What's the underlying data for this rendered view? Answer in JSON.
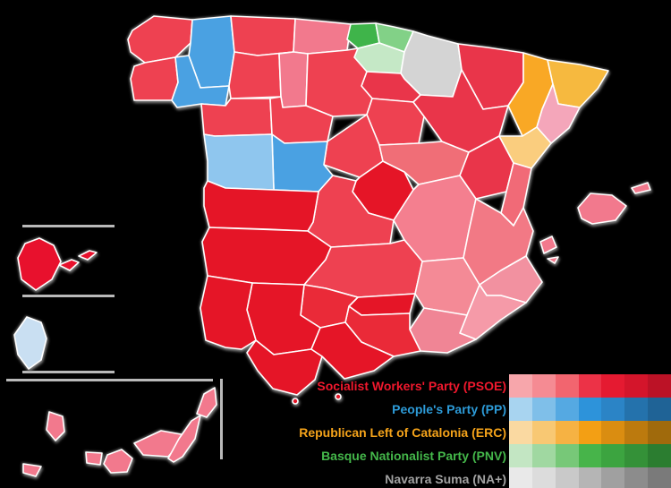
{
  "legend": {
    "parties": [
      {
        "id": "psoe",
        "label": "Socialist Workers' Party (PSOE)",
        "text_color": "#F0182D",
        "shades": [
          "#F7A6AB",
          "#F58B93",
          "#F2656F",
          "#EC3247",
          "#E51A31",
          "#D4152B",
          "#BC1226"
        ]
      },
      {
        "id": "pp",
        "label": "People's Party (PP)",
        "text_color": "#2D9BD8",
        "shades": [
          "#A8D4F0",
          "#7FBFE9",
          "#55A9E2",
          "#2D93DA",
          "#2B84C6",
          "#2472AC",
          "#1F6396"
        ]
      },
      {
        "id": "erc",
        "label": "Republican Left of Catalonia (ERC)",
        "text_color": "#F5A31A",
        "shades": [
          "#FAD9A1",
          "#F8C873",
          "#F6B243",
          "#F39F14",
          "#DA8D11",
          "#BC7A0E",
          "#A06A0C"
        ]
      },
      {
        "id": "pnv",
        "label": "Basque Nationalist Party (PNV)",
        "text_color": "#44B74A",
        "shades": [
          "#C3E6C3",
          "#A0D8A1",
          "#77C878",
          "#47B44A",
          "#3CA440",
          "#349138",
          "#2B7D30"
        ]
      },
      {
        "id": "nas",
        "label": "Navarra Suma (NA+)",
        "text_color": "#A2A2A2",
        "shades": [
          "#E9E9E9",
          "#DCDCDC",
          "#C9C9C9",
          "#B5B5B5",
          "#A0A0A0",
          "#8C8C8C",
          "#7A7A7A"
        ]
      }
    ]
  },
  "map": {
    "border_color": "#ffffff",
    "divider_color": "#B9B9B9",
    "province_fills": {
      "a-coruna": "#EE4151",
      "lugo": "#4AA1E2",
      "pontevedra": "#EE4151",
      "ourense": "#4AA1E2",
      "asturias": "#EE4151",
      "cantabria": "#F2798D",
      "bizkaia": "#3FB44A",
      "gipuzkoa": "#82D187",
      "araba": "#C5E8C6",
      "navarra": "#D4D4D4",
      "la-rioja": "#E9354A",
      "leon": "#EE4151",
      "palencia": "#F2798D",
      "burgos": "#EE4151",
      "zamora": "#EE4151",
      "valladolid": "#EE4151",
      "soria": "#EE4151",
      "segovia": "#EE4151",
      "avila": "#4AA1E2",
      "salamanca": "#8FC6EE",
      "madrid": "#E51527",
      "guadalajara": "#F06E77",
      "toledo": "#EE4151",
      "cuenca": "#F47F8F",
      "ciudad-real": "#EE4151",
      "albacete": "#F48A96",
      "huesca": "#E9354A",
      "zaragoza": "#E9354A",
      "teruel": "#E9354A",
      "lleida": "#F9A825",
      "girona": "#F6B93F",
      "barcelona": "#F4A6BA",
      "tarragona": "#FACD7E",
      "castellon": "#F16A77",
      "valencia": "#F27985",
      "alicante": "#F291A0",
      "murcia": "#F59AA8",
      "almeria": "#F08595",
      "granada": "#EA2A38",
      "jaen": "#E51527",
      "cordoba": "#EA2A38",
      "sevilla": "#E51527",
      "huelva": "#E51527",
      "cadiz": "#E51527",
      "malaga": "#E51527",
      "badajoz": "#E51527",
      "caceres": "#E51527",
      "mallorca": "#F2798D",
      "menorca": "#F2798D",
      "ibiza": "#F2798D",
      "formentera": "#F2798D",
      "la-palma": "#F2798D",
      "el-hierro": "#F2798D",
      "la-gomera": "#F2798D",
      "tenerife": "#F2798D",
      "gran-canaria": "#F2798D",
      "fuerteventura": "#F2798D",
      "lanzarote": "#F2798D",
      "ceuta": "#E51527",
      "melilla": "#E51527",
      "inset-archipelago": "#E8112D",
      "inset-island": "#C9DFF2"
    }
  }
}
